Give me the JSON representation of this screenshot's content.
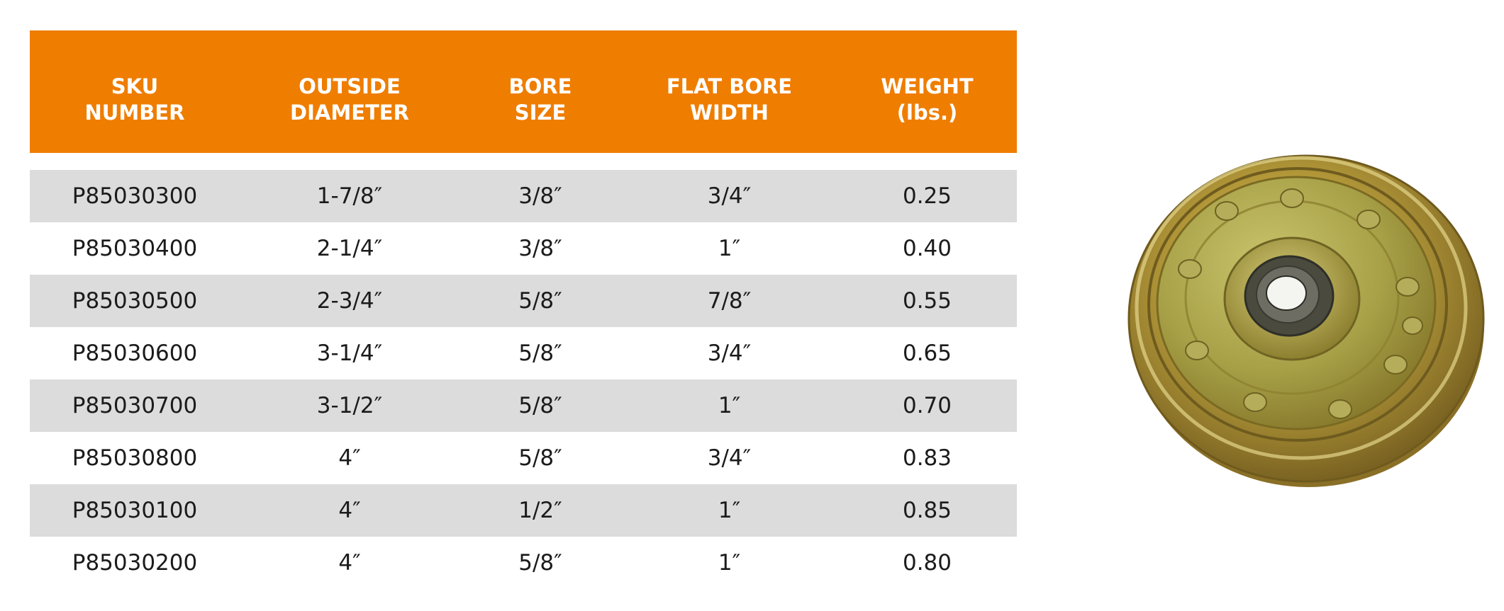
{
  "table": {
    "headers": [
      "SKU\nNUMBER",
      "OUTSIDE\nDIAMETER",
      "BORE\nSIZE",
      "FLAT BORE\nWIDTH",
      "WEIGHT\n(lbs.)"
    ],
    "rows": [
      [
        "P85030300",
        "1-7/8″",
        "3/8″",
        "3/4″",
        "0.25"
      ],
      [
        "P85030400",
        "2-1/4″",
        "3/8″",
        "1″",
        "0.40"
      ],
      [
        "P85030500",
        "2-3/4″",
        "5/8″",
        "7/8″",
        "0.55"
      ],
      [
        "P85030600",
        "3-1/4″",
        "5/8″",
        "3/4″",
        "0.65"
      ],
      [
        "P85030700",
        "3-1/2″",
        "5/8″",
        "1″",
        "0.70"
      ],
      [
        "P85030800",
        "4″",
        "5/8″",
        "3/4″",
        "0.83"
      ],
      [
        "P85030100",
        "4″",
        "1/2″",
        "1″",
        "0.85"
      ],
      [
        "P85030200",
        "4″",
        "5/8″",
        "1″",
        "0.80"
      ]
    ]
  },
  "colors": {
    "header_bg": "#ef7d00",
    "header_text": "#ffffff",
    "row_shade": "#dcdcdc",
    "body_text": "#1b1b1b"
  },
  "product_image": {
    "icon": "pulley-icon"
  }
}
